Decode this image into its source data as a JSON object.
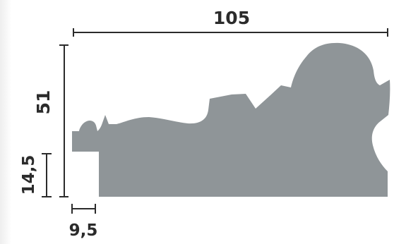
{
  "dimensions": {
    "width": "105",
    "height": "51",
    "rebate_height": "14,5",
    "rebate_width": "9,5"
  },
  "colors": {
    "profile_fill": "#8f9598",
    "line": "#2b2b2b",
    "text": "#2b2b2b"
  }
}
